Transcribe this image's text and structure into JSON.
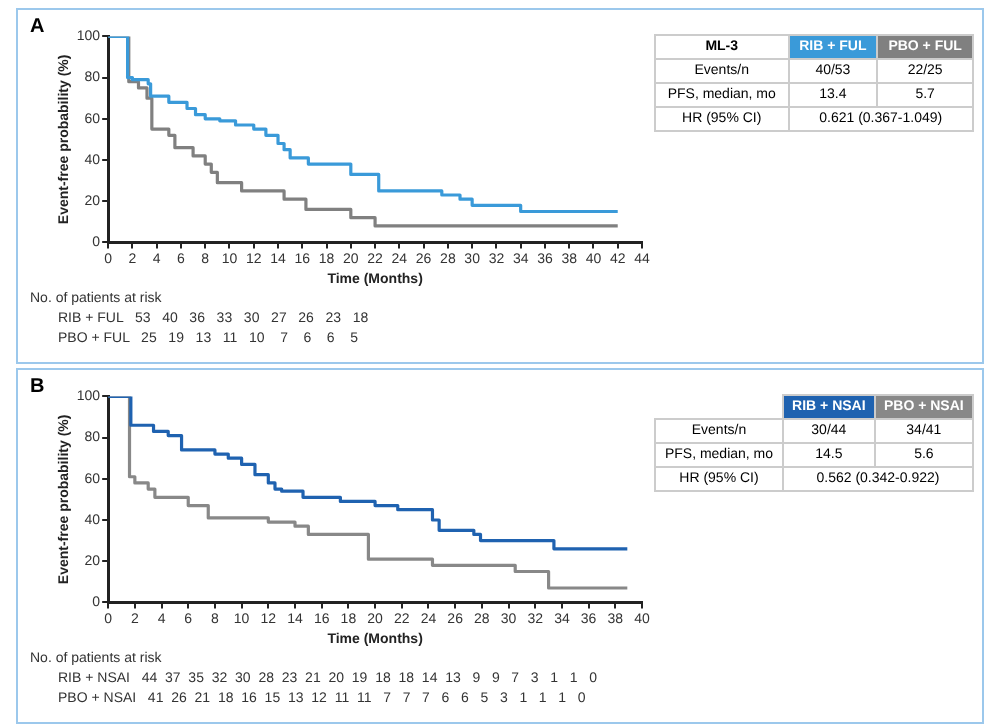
{
  "chart_data": [
    {
      "type": "step",
      "title": "A",
      "xlabel": "Time (Months)",
      "ylabel": "Event-free probability (%)",
      "xlim": [
        0,
        44
      ],
      "xticks": [
        0,
        2,
        4,
        6,
        8,
        10,
        12,
        14,
        16,
        18,
        20,
        22,
        24,
        26,
        28,
        30,
        32,
        34,
        36,
        38,
        40,
        42,
        44
      ],
      "ylim": [
        0,
        100
      ],
      "yticks": [
        0,
        20,
        40,
        60,
        80,
        100
      ],
      "legend": "top right",
      "series": [
        {
          "name": "RIB + FUL",
          "color": "#3a9ad9",
          "x": [
            0,
            1.6,
            2,
            3.3,
            3.5,
            5,
            6.5,
            7.2,
            8,
            9.2,
            10.5,
            12,
            13,
            14,
            14.5,
            15,
            16.5,
            20,
            22.3,
            27.5,
            29,
            30,
            34,
            42
          ],
          "values": [
            100,
            80,
            79,
            77,
            71,
            68,
            65,
            62,
            60,
            59,
            57,
            55,
            52,
            48,
            45,
            41,
            38,
            33,
            25,
            23,
            21,
            18,
            15,
            15
          ]
        },
        {
          "name": "PBO + FUL",
          "color": "#808080",
          "x": [
            0,
            1.7,
            2.5,
            3.2,
            3.6,
            5,
            5.5,
            7,
            8,
            8.5,
            9,
            11,
            14.5,
            16.3,
            20,
            22,
            42
          ],
          "values": [
            100,
            78,
            75,
            70,
            55,
            52,
            46,
            42,
            38,
            34,
            29,
            25,
            21,
            16,
            12,
            8,
            8
          ]
        }
      ],
      "annotations": [
        "ML-3",
        "Events/n",
        "40/53",
        "22/25",
        "PFS, median, mo",
        "13.4",
        "5.7",
        "HR (95% CI)",
        "0.621 (0.367-1.049)",
        "No. of patients at risk",
        "RIB + FUL   53   40   36   33   30   27   26   23   18",
        "PBO + FUL   25   19   13   11   10    7    6    6    5"
      ]
    },
    {
      "type": "step",
      "title": "B",
      "xlabel": "Time (Months)",
      "ylabel": "Event-free probability (%)",
      "xlim": [
        0,
        40
      ],
      "xticks": [
        0,
        2,
        4,
        6,
        8,
        10,
        12,
        14,
        16,
        18,
        20,
        22,
        24,
        26,
        28,
        30,
        32,
        34,
        36,
        38,
        40
      ],
      "ylim": [
        0,
        100
      ],
      "yticks": [
        0,
        20,
        40,
        60,
        80,
        100
      ],
      "legend": "top right",
      "series": [
        {
          "name": "RIB + NSAI",
          "color": "#1f62b0",
          "x": [
            0,
            1.7,
            3.4,
            4.5,
            5.5,
            8,
            9,
            10,
            11,
            12,
            12.5,
            13,
            14.6,
            17.4,
            20,
            21.7,
            24.3,
            24.8,
            27.4,
            27.9,
            33.4,
            38.9
          ],
          "values": [
            100,
            86,
            83,
            81,
            74,
            72,
            70,
            67,
            62,
            58,
            55,
            54,
            51,
            49,
            47,
            45,
            40,
            35,
            33,
            30,
            26,
            26
          ]
        },
        {
          "name": "PBO + NSAI",
          "color": "#888888",
          "x": [
            0,
            1.6,
            1.8,
            2,
            3,
            3.5,
            6,
            7.5,
            12,
            14,
            15,
            19.5,
            24.3,
            30.5,
            33,
            38.9
          ],
          "values": [
            100,
            61,
            61,
            58,
            55,
            51,
            47,
            41,
            39,
            37,
            33,
            21,
            18,
            15,
            7,
            7
          ]
        }
      ],
      "annotations": [
        "Events/n",
        "30/44",
        "34/41",
        "PFS, median, mo",
        "14.5",
        "5.6",
        "HR (95% CI)",
        "0.562 (0.342-0.922)",
        "No. of patients at risk",
        "RIB + NSAI   44  37  35  32  30  28  23  21  20  19  18  18  14  13   9   9   7   3   1   1   0",
        "PBO + NSAI   41  26  21  18  16  15  13  12  11  11   7   7   7   6   6   5   3   1   1   1   0"
      ]
    }
  ]
}
